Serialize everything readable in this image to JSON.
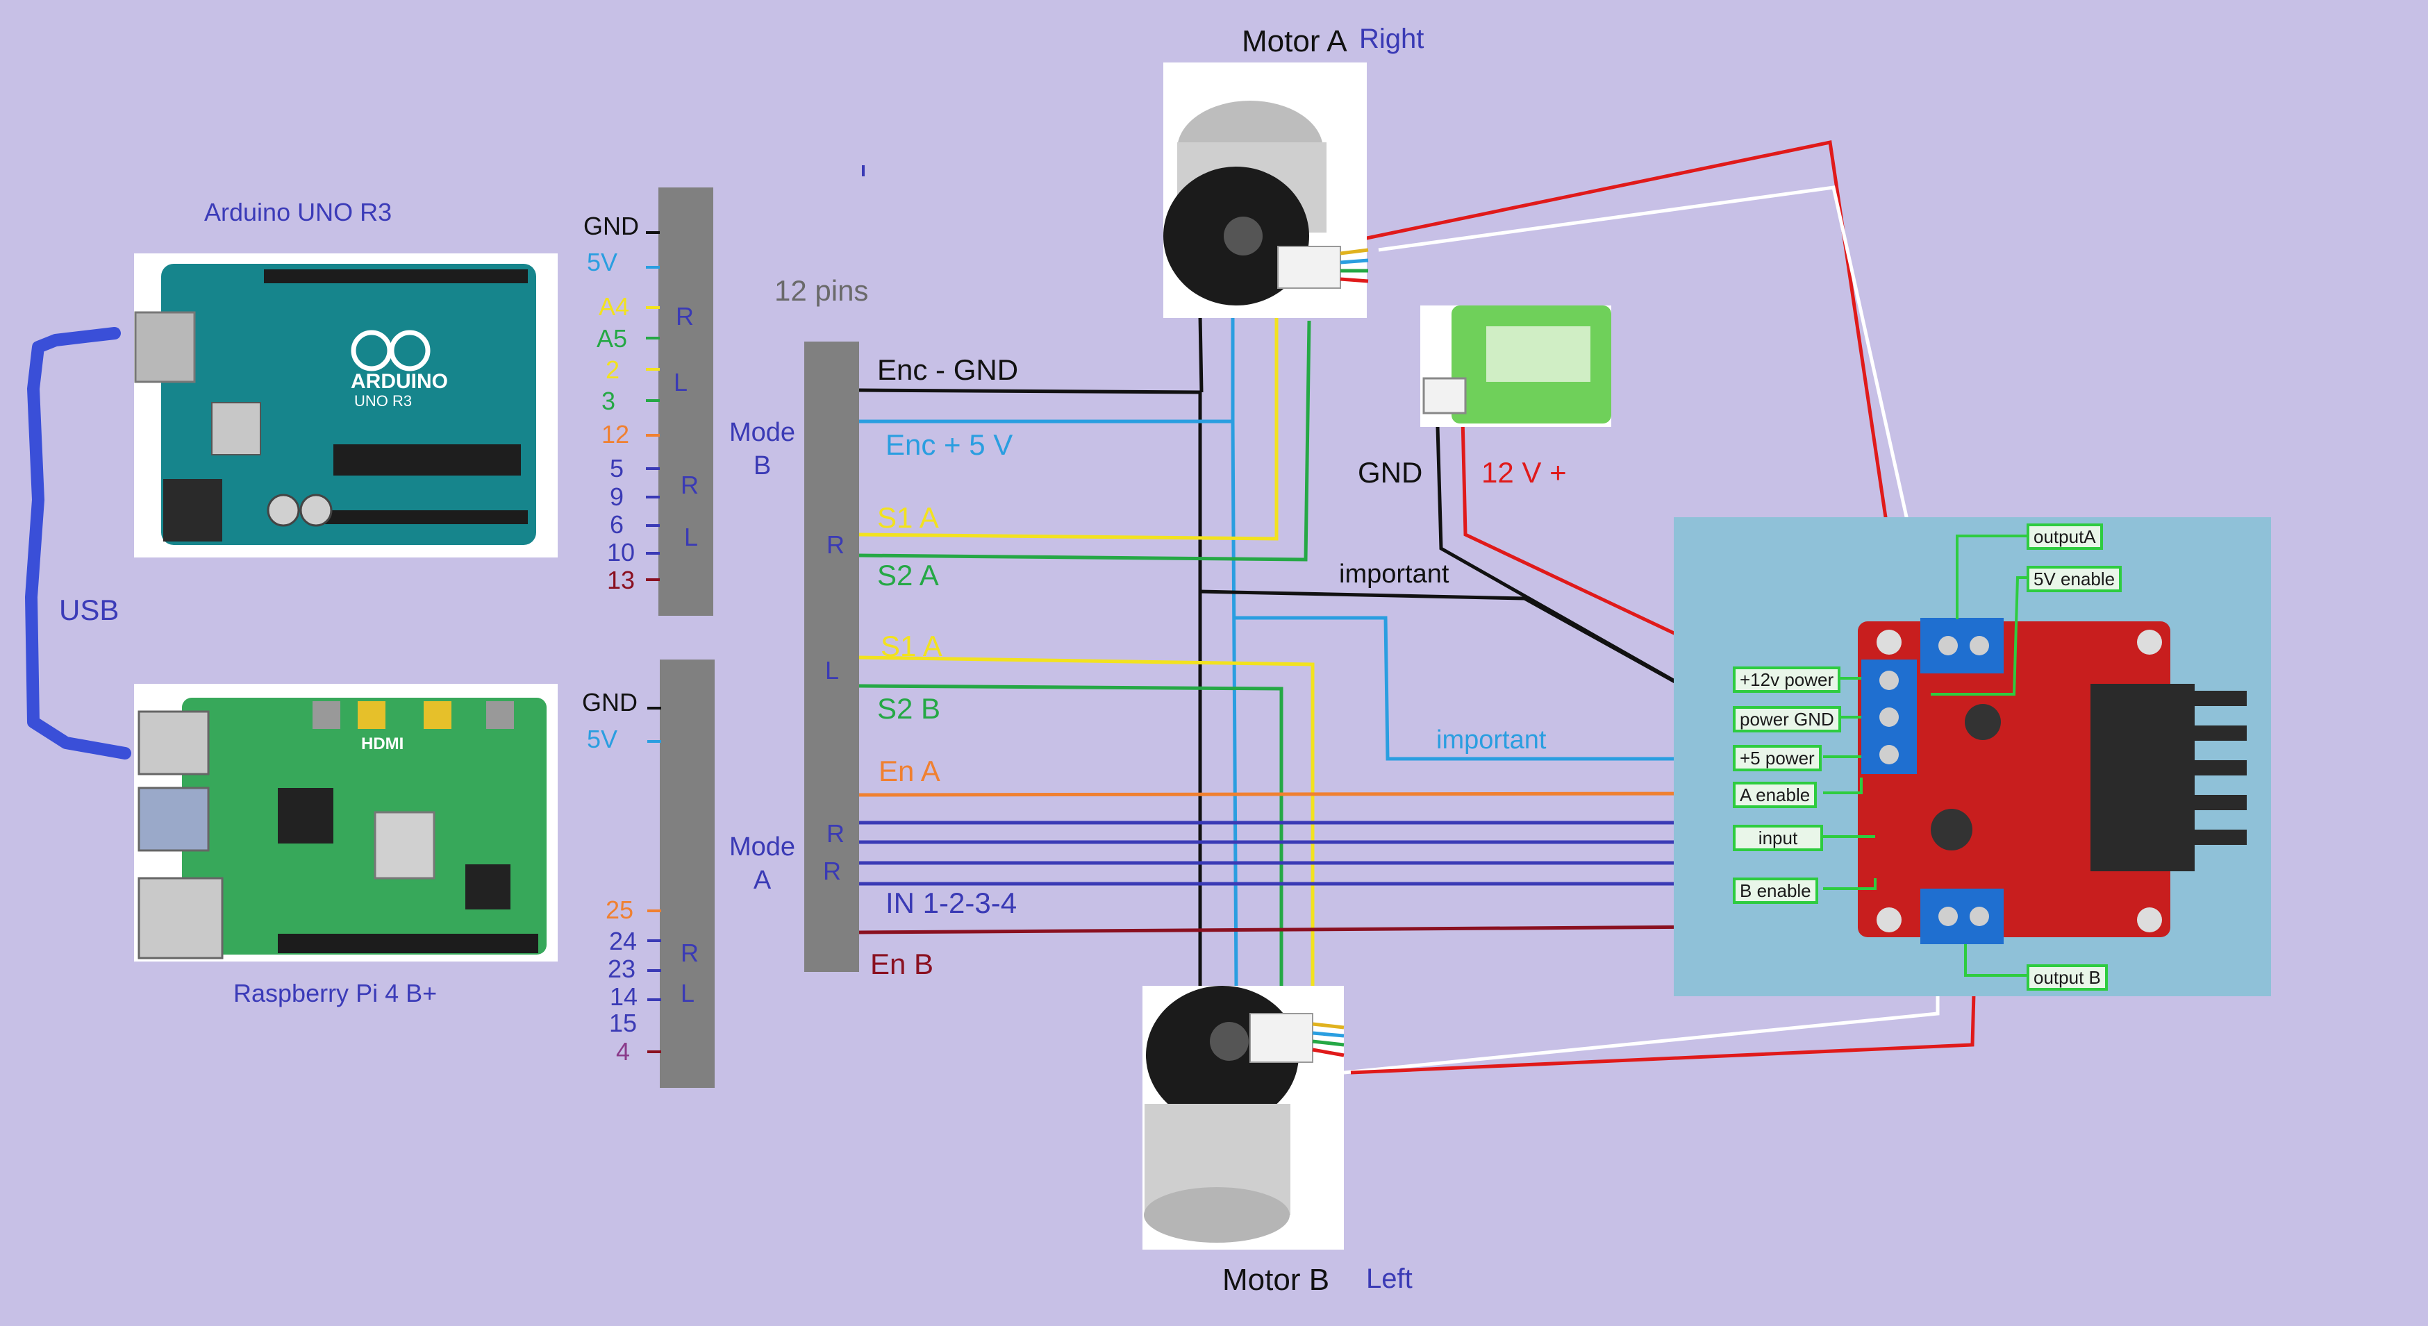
{
  "boards": {
    "arduino_title": "Arduino UNO R3",
    "pi_title": "Raspberry Pi 4 B+",
    "usb_label": "USB",
    "arduino_silk": "ARDUINO",
    "arduino_model": "UNO R3",
    "pi_silk": "HDMI"
  },
  "arduino_header": {
    "gnd": "GND",
    "v5": "5V",
    "pins": [
      "A4",
      "A5",
      "2",
      "3",
      "12",
      "5",
      "9",
      "6",
      "10",
      "13"
    ],
    "side_letters": [
      "R",
      "L",
      "R",
      "L"
    ]
  },
  "pi_header": {
    "gnd": "GND",
    "v5": "5V",
    "pins": [
      "25",
      "24",
      "23",
      "14",
      "15",
      "4"
    ],
    "side_letters": [
      "R",
      "L"
    ]
  },
  "connector": {
    "title": "12 pins",
    "mode_b": "Mode\nB",
    "mode_a": "Mode\nA",
    "letters": [
      "R",
      "L",
      "R",
      "R"
    ]
  },
  "wires": {
    "enc_gnd": "Enc - GND",
    "enc_5v": "Enc + 5 V",
    "s1a_r": "S1 A",
    "s2a": "S2 A",
    "s1a_l": "S1 A",
    "s2b": "S2 B",
    "en_a": "En A",
    "in_1234": "IN 1-2-3-4",
    "en_b": "En B",
    "important_1": "important",
    "important_2": "important"
  },
  "motors": {
    "a_name": "Motor A",
    "a_side": "Right",
    "b_name": "Motor B",
    "b_side": "Left"
  },
  "battery": {
    "gnd": "GND",
    "plus": "12 V +"
  },
  "driver": {
    "labels": [
      "+12v power",
      "power GND",
      "+5 power",
      "A enable",
      "input",
      "B enable"
    ],
    "output_a": "outputA",
    "enable_5v": "5V enable",
    "output_b": "output B"
  },
  "colors": {
    "background": "#c7c0e6",
    "black": "#111111",
    "blue": "#2a9ee0",
    "yellow": "#f2e21e",
    "green": "#25a845",
    "orange": "#f08030",
    "indigo": "#3a3ab5",
    "maroon": "#8a1020",
    "red": "#e01a1a",
    "white": "#ffffff",
    "label_blue": "#3b3bb8"
  }
}
